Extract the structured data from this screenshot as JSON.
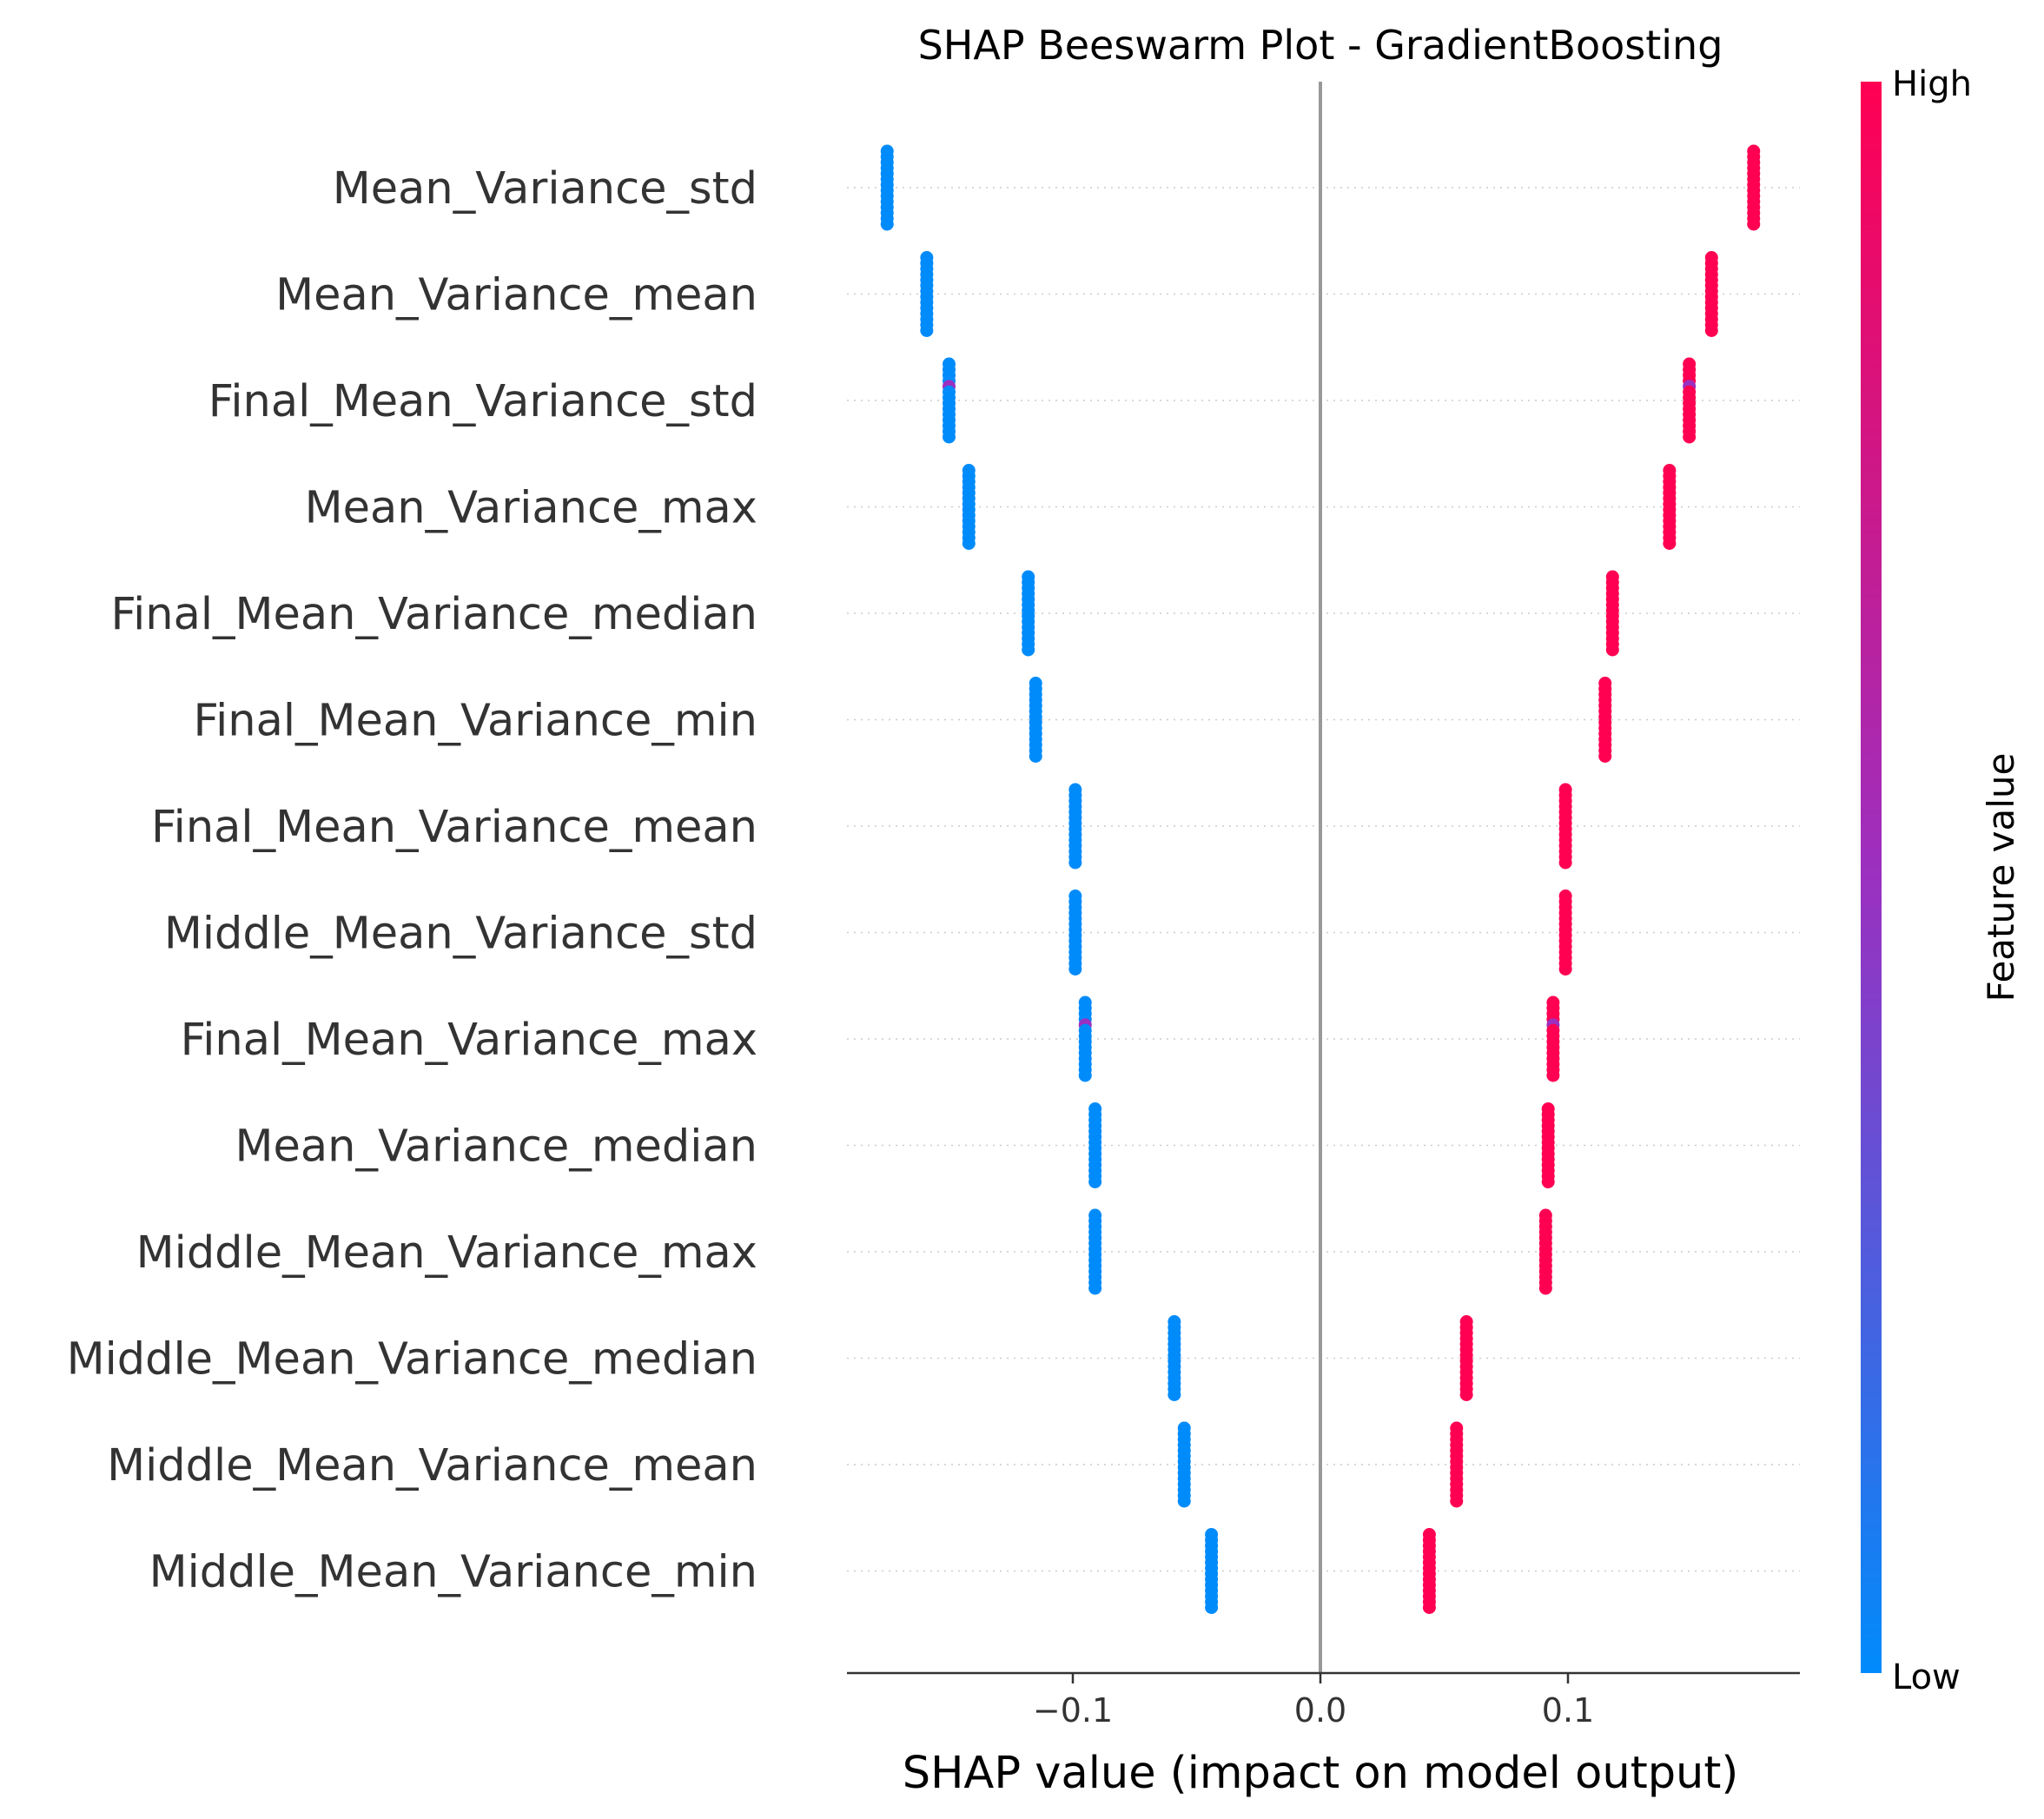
{
  "chart_data": {
    "type": "scatter",
    "subtype": "shap-beeswarm",
    "title": "SHAP Beeswarm Plot - GradientBoosting",
    "xlabel": "SHAP value (impact on model output)",
    "xlim": [
      -0.192,
      0.192
    ],
    "xticks": [
      {
        "value": -0.1,
        "label": "−0.1"
      },
      {
        "value": 0.0,
        "label": "0.0"
      },
      {
        "value": 0.1,
        "label": "0.1"
      }
    ],
    "zero_line": true,
    "row_gridlines": "dotted",
    "colorbar": {
      "label": "Feature value",
      "high_label": "High",
      "low_label": "Low",
      "high_color": "#ff0052",
      "mid_color": "#9b30c0",
      "low_color": "#008bfb"
    },
    "features": [
      {
        "name": "Mean_Variance_std",
        "low_shap": -0.175,
        "high_shap": 0.175
      },
      {
        "name": "Mean_Variance_mean",
        "low_shap": -0.159,
        "high_shap": 0.158
      },
      {
        "name": "Final_Mean_Variance_std",
        "low_shap": -0.15,
        "high_shap": 0.149
      },
      {
        "name": "Mean_Variance_max",
        "low_shap": -0.142,
        "high_shap": 0.141
      },
      {
        "name": "Final_Mean_Variance_median",
        "low_shap": -0.118,
        "high_shap": 0.118
      },
      {
        "name": "Final_Mean_Variance_min",
        "low_shap": -0.115,
        "high_shap": 0.115
      },
      {
        "name": "Final_Mean_Variance_mean",
        "low_shap": -0.099,
        "high_shap": 0.099
      },
      {
        "name": "Middle_Mean_Variance_std",
        "low_shap": -0.099,
        "high_shap": 0.099
      },
      {
        "name": "Final_Mean_Variance_max",
        "low_shap": -0.095,
        "high_shap": 0.094
      },
      {
        "name": "Mean_Variance_median",
        "low_shap": -0.091,
        "high_shap": 0.092
      },
      {
        "name": "Middle_Mean_Variance_max",
        "low_shap": -0.091,
        "high_shap": 0.091
      },
      {
        "name": "Middle_Mean_Variance_median",
        "low_shap": -0.059,
        "high_shap": 0.059
      },
      {
        "name": "Middle_Mean_Variance_mean",
        "low_shap": -0.055,
        "high_shap": 0.055
      },
      {
        "name": "Middle_Mean_Variance_min",
        "low_shap": -0.044,
        "high_shap": 0.044
      }
    ]
  }
}
